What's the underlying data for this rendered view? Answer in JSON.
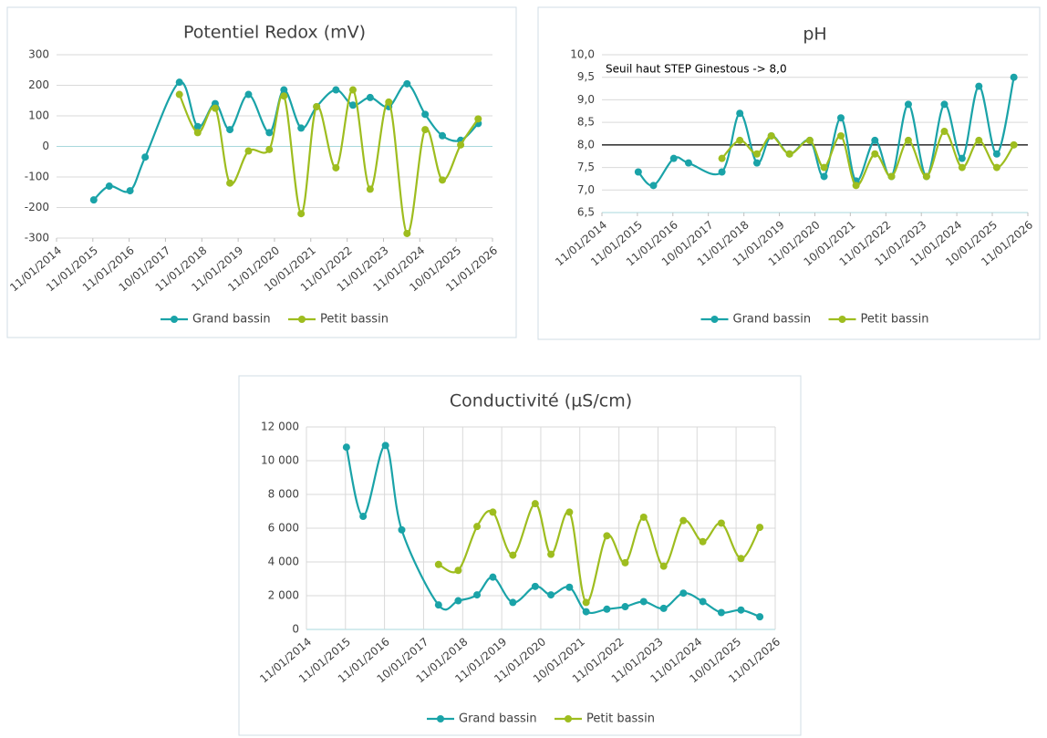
{
  "chart_data": [
    {
      "type": "line",
      "title": "Potentiel Redox (mV)",
      "x": [
        "2015-01-20",
        "2015-06-25",
        "2016-01-20",
        "2016-06-20",
        "2017-05-30",
        "2017-11-30",
        "2018-05-25",
        "2018-10-20",
        "2019-04-25",
        "2019-11-20",
        "2020-04-15",
        "2020-10-05",
        "2021-03-10",
        "2021-09-20",
        "2022-03-10",
        "2022-08-30",
        "2023-03-05",
        "2023-09-05",
        "2024-03-05",
        "2024-08-25",
        "2025-02-25",
        "2025-08-20"
      ],
      "series": [
        {
          "name": "Grand bassin",
          "color": "#1aa3a8",
          "values": [
            -175,
            -130,
            -145,
            -35,
            210,
            65,
            140,
            55,
            170,
            45,
            185,
            60,
            130,
            185,
            135,
            160,
            130,
            205,
            105,
            35,
            20,
            75
          ]
        },
        {
          "name": "Petit bassin",
          "color": "#9ebd1f",
          "values": [
            null,
            null,
            null,
            null,
            170,
            45,
            125,
            -120,
            -15,
            -10,
            165,
            -220,
            130,
            -70,
            185,
            -140,
            145,
            -285,
            55,
            -110,
            5,
            90
          ]
        }
      ],
      "ylim": [
        -300,
        300
      ],
      "yticks": [
        -300,
        -200,
        -100,
        0,
        100,
        200,
        300
      ],
      "xlim": [
        "2014-01-11",
        "2026-01-11"
      ],
      "xticks": [
        {
          "value": "2014-01-11",
          "label": "11/01/2014"
        },
        {
          "value": "2015-01-11",
          "label": "11/01/2015"
        },
        {
          "value": "2016-01-11",
          "label": "11/01/2016"
        },
        {
          "value": "2017-01-10",
          "label": "10/01/2017"
        },
        {
          "value": "2018-01-11",
          "label": "11/01/2018"
        },
        {
          "value": "2019-01-11",
          "label": "11/01/2019"
        },
        {
          "value": "2020-01-11",
          "label": "11/01/2020"
        },
        {
          "value": "2021-01-10",
          "label": "10/01/2021"
        },
        {
          "value": "2022-01-11",
          "label": "11/01/2022"
        },
        {
          "value": "2023-01-11",
          "label": "11/01/2023"
        },
        {
          "value": "2024-01-11",
          "label": "11/01/2024"
        },
        {
          "value": "2025-01-10",
          "label": "10/01/2025"
        },
        {
          "value": "2026-01-11",
          "label": "11/01/2026"
        }
      ],
      "grid": "y"
    },
    {
      "type": "line",
      "title": "pH",
      "x": [
        "2015-01-20",
        "2015-06-25",
        "2016-01-20",
        "2016-06-20",
        "2017-05-30",
        "2017-11-30",
        "2018-05-25",
        "2018-10-20",
        "2019-04-25",
        "2019-11-20",
        "2020-04-15",
        "2020-10-05",
        "2021-03-10",
        "2021-09-20",
        "2022-03-10",
        "2022-08-30",
        "2023-03-05",
        "2023-09-05",
        "2024-03-05",
        "2024-08-25",
        "2025-02-25",
        "2025-08-20"
      ],
      "series": [
        {
          "name": "Grand bassin",
          "color": "#1aa3a8",
          "values": [
            7.4,
            7.1,
            7.7,
            7.6,
            7.4,
            8.7,
            7.6,
            8.2,
            7.8,
            8.1,
            7.3,
            8.6,
            7.2,
            8.1,
            7.3,
            8.9,
            7.3,
            8.9,
            7.7,
            9.3,
            7.8,
            9.5
          ]
        },
        {
          "name": "Petit bassin",
          "color": "#9ebd1f",
          "values": [
            null,
            null,
            null,
            null,
            7.7,
            8.1,
            7.8,
            8.2,
            7.8,
            8.1,
            7.5,
            8.2,
            7.1,
            7.8,
            7.3,
            8.1,
            7.3,
            8.3,
            7.5,
            8.1,
            7.5,
            8.0
          ]
        }
      ],
      "ylim": [
        6.5,
        10.0
      ],
      "yticks": [
        {
          "value": 6.5,
          "label": "6,5"
        },
        {
          "value": 7.0,
          "label": "7,0"
        },
        {
          "value": 7.5,
          "label": "7,5"
        },
        {
          "value": 8.0,
          "label": "8,0"
        },
        {
          "value": 8.5,
          "label": "8,5"
        },
        {
          "value": 9.0,
          "label": "9,0"
        },
        {
          "value": 9.5,
          "label": "9,5"
        },
        {
          "value": 10.0,
          "label": "10,0"
        }
      ],
      "xlim": [
        "2014-01-11",
        "2026-01-11"
      ],
      "xticks": [
        {
          "value": "2014-01-11",
          "label": "11/01/2014"
        },
        {
          "value": "2015-01-11",
          "label": "11/01/2015"
        },
        {
          "value": "2016-01-11",
          "label": "11/01/2016"
        },
        {
          "value": "2017-01-10",
          "label": "10/01/2017"
        },
        {
          "value": "2018-01-11",
          "label": "11/01/2018"
        },
        {
          "value": "2019-01-11",
          "label": "11/01/2019"
        },
        {
          "value": "2020-01-11",
          "label": "11/01/2020"
        },
        {
          "value": "2021-01-10",
          "label": "10/01/2021"
        },
        {
          "value": "2022-01-11",
          "label": "11/01/2022"
        },
        {
          "value": "2023-01-11",
          "label": "11/01/2023"
        },
        {
          "value": "2024-01-11",
          "label": "11/01/2024"
        },
        {
          "value": "2025-01-10",
          "label": "10/01/2025"
        },
        {
          "value": "2026-01-11",
          "label": "11/01/2026"
        }
      ],
      "grid": "y",
      "threshold": {
        "value": 8.0,
        "label": "Seuil haut STEP Ginestous -> 8,0"
      }
    },
    {
      "type": "line",
      "title": "Conductivité (µS/cm)",
      "x": [
        "2015-01-20",
        "2015-06-25",
        "2016-01-20",
        "2016-06-20",
        "2017-05-30",
        "2017-11-30",
        "2018-05-25",
        "2018-10-20",
        "2019-04-25",
        "2019-11-20",
        "2020-04-15",
        "2020-10-05",
        "2021-03-10",
        "2021-09-20",
        "2022-03-10",
        "2022-08-30",
        "2023-03-05",
        "2023-09-05",
        "2024-03-05",
        "2024-08-25",
        "2025-02-25",
        "2025-08-20"
      ],
      "series": [
        {
          "name": "Grand bassin",
          "color": "#1aa3a8",
          "values": [
            10800,
            6700,
            10900,
            5900,
            1450,
            1700,
            2050,
            3100,
            1600,
            2550,
            2050,
            2500,
            1050,
            1200,
            1350,
            1650,
            1250,
            2150,
            1650,
            1000,
            1150,
            750
          ]
        },
        {
          "name": "Petit bassin",
          "color": "#9ebd1f",
          "values": [
            null,
            null,
            null,
            null,
            3850,
            3500,
            6100,
            6950,
            4400,
            7450,
            4450,
            6950,
            1600,
            5550,
            3950,
            6650,
            3750,
            6450,
            5200,
            6300,
            4200,
            6050
          ]
        }
      ],
      "ylim": [
        0,
        12000
      ],
      "yticks": [
        0,
        {
          "value": 2000,
          "label": "2 000"
        },
        {
          "value": 4000,
          "label": "4 000"
        },
        {
          "value": 6000,
          "label": "6 000"
        },
        {
          "value": 8000,
          "label": "8 000"
        },
        {
          "value": 10000,
          "label": "10 000"
        },
        {
          "value": 12000,
          "label": "12 000"
        }
      ],
      "xlim": [
        "2014-01-11",
        "2026-01-11"
      ],
      "xticks": [
        {
          "value": "2014-01-11",
          "label": "11/01/2014"
        },
        {
          "value": "2015-01-11",
          "label": "11/01/2015"
        },
        {
          "value": "2016-01-11",
          "label": "11/01/2016"
        },
        {
          "value": "2017-01-10",
          "label": "10/01/2017"
        },
        {
          "value": "2018-01-11",
          "label": "11/01/2018"
        },
        {
          "value": "2019-01-11",
          "label": "11/01/2019"
        },
        {
          "value": "2020-01-11",
          "label": "11/01/2020"
        },
        {
          "value": "2021-01-10",
          "label": "10/01/2021"
        },
        {
          "value": "2022-01-11",
          "label": "11/01/2022"
        },
        {
          "value": "2023-01-11",
          "label": "11/01/2023"
        },
        {
          "value": "2024-01-11",
          "label": "11/01/2024"
        },
        {
          "value": "2025-01-10",
          "label": "10/01/2025"
        },
        {
          "value": "2026-01-11",
          "label": "11/01/2026"
        }
      ],
      "grid": "both"
    }
  ]
}
